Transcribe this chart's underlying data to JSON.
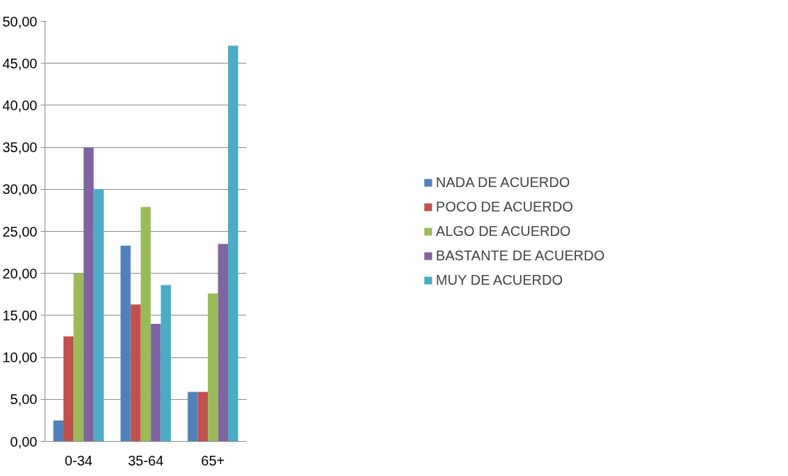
{
  "chart_data": {
    "type": "bar",
    "categories": [
      "0-34",
      "35-64",
      "65+"
    ],
    "series": [
      {
        "name": "NADA DE ACUERDO",
        "color": "#4f81bd",
        "values": [
          2.5,
          23.3,
          5.9
        ]
      },
      {
        "name": "POCO DE ACUERDO",
        "color": "#c0504d",
        "values": [
          12.5,
          16.3,
          5.9
        ]
      },
      {
        "name": "ALGO DE ACUERDO",
        "color": "#9bbb59",
        "values": [
          20.0,
          27.9,
          17.6
        ]
      },
      {
        "name": "BASTANTE DE ACUERDO",
        "color": "#8064a2",
        "values": [
          35.0,
          14.0,
          23.5
        ]
      },
      {
        "name": "MUY DE ACUERDO",
        "color": "#4bacc6",
        "values": [
          30.0,
          18.6,
          47.1
        ]
      }
    ],
    "ylim": [
      0,
      50
    ],
    "yticks": [
      {
        "value": 0,
        "label": "0,00"
      },
      {
        "value": 5,
        "label": "5,00"
      },
      {
        "value": 10,
        "label": "10,00"
      },
      {
        "value": 15,
        "label": "15,00"
      },
      {
        "value": 20,
        "label": "20,00"
      },
      {
        "value": 25,
        "label": "25,00"
      },
      {
        "value": 30,
        "label": "30,00"
      },
      {
        "value": 35,
        "label": "35,00"
      },
      {
        "value": 40,
        "label": "40,00"
      },
      {
        "value": 45,
        "label": "45,00"
      },
      {
        "value": 50,
        "label": "50,00"
      }
    ],
    "grid": "y",
    "legend": "right"
  }
}
